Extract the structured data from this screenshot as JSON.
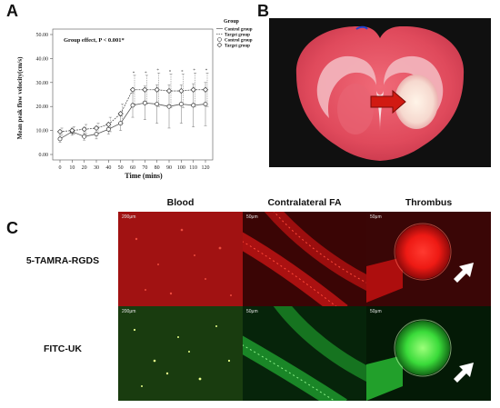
{
  "panels": {
    "a": "A",
    "b": "B",
    "c": "C"
  },
  "chart_data": {
    "type": "line",
    "title": "Group effect, P < 0.001*",
    "xlabel": "Time (mins)",
    "ylabel": "Mean peak flow velocity(cm/s)",
    "x": [
      0,
      10,
      20,
      30,
      40,
      50,
      60,
      70,
      80,
      90,
      100,
      110,
      120
    ],
    "x_ticks": [
      "0",
      "10",
      "20",
      "30",
      "40",
      "50",
      "60",
      "70",
      "80",
      "90",
      "100",
      "110",
      "120"
    ],
    "y_ticks": [
      "0.00",
      "10.00",
      "20.00",
      "30.00",
      "40.00",
      "50.00"
    ],
    "y_tick_values": [
      0,
      10,
      20,
      30,
      40,
      50
    ],
    "ylim": [
      0,
      50
    ],
    "legend_title": "Group",
    "legend_entries": [
      "Control group",
      "Target group",
      "Control group",
      "Target group"
    ],
    "series": [
      {
        "name": "Control group",
        "marker": "circle",
        "values": [
          6.5,
          9.5,
          7.5,
          8.5,
          10.5,
          13,
          20.5,
          21.5,
          21,
          20,
          21,
          20.5,
          21
        ],
        "err": [
          1.5,
          1.5,
          1.5,
          2,
          2,
          3,
          5,
          7,
          8,
          9,
          8,
          9,
          9
        ]
      },
      {
        "name": "Target group",
        "marker": "diamond",
        "values": [
          9.5,
          10,
          10.5,
          11,
          12.5,
          17,
          27,
          27,
          27,
          26.5,
          26.5,
          27,
          27
        ],
        "err": [
          1.5,
          1.5,
          2,
          2,
          3,
          4,
          6,
          6,
          7,
          7,
          7,
          7,
          7
        ]
      }
    ],
    "significance_mark": "*",
    "grid": false,
    "legend_position": "right"
  },
  "fluorescence": {
    "columns": [
      "Blood",
      "Contralateral FA",
      "Thrombus"
    ],
    "rows": [
      "5-TAMRA-RGDS",
      "FITC-UK"
    ],
    "scales": [
      [
        "200μm",
        "50μm",
        "50μm"
      ],
      [
        "200μm",
        "50μm",
        "50μm"
      ]
    ]
  },
  "colors": {
    "tamra": "#cc1111",
    "fitc": "#22c433",
    "infarct_arrow": "#d11a12",
    "brain_tissue": "#e04a5c"
  }
}
